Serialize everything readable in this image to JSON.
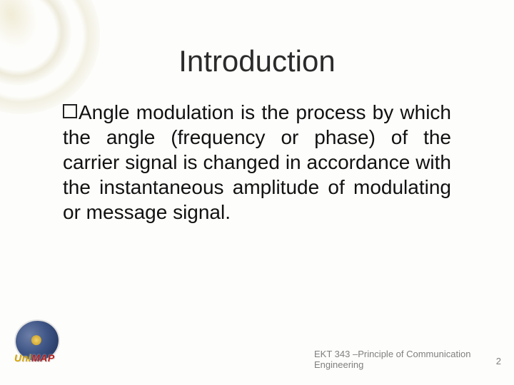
{
  "title": "Introduction",
  "bullet": {
    "text": "Angle modulation is the process by which the angle (frequency or phase) of the carrier signal is changed in accordance with the instantaneous amplitude of modulating or message signal."
  },
  "footer": {
    "line1": "EKT 343 –Principle of Communication",
    "line2": "Engineering"
  },
  "page_number": "2",
  "logo": {
    "part1": "Uni",
    "part2": "MAP"
  },
  "colors": {
    "title": "#2b2b2b",
    "body": "#111111",
    "footer": "#7f7f7f",
    "logo_uni": "#d6a400",
    "logo_map": "#b02020",
    "background": "#fdfdfb"
  },
  "fonts": {
    "title_size_pt": 32,
    "body_size_pt": 21,
    "footer_size_pt": 10
  }
}
